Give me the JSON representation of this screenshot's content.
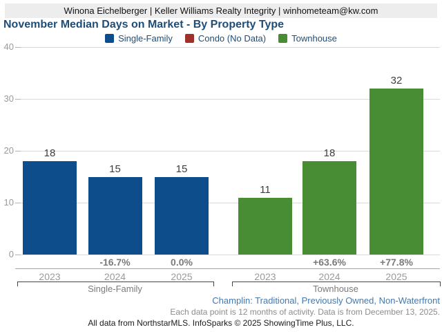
{
  "header": {
    "text": "Winona Eichelberger | Keller Williams Realty Integrity | winhometeam@kw.com"
  },
  "title": "November Median Days on Market - By Property Type",
  "footer": {
    "filter_line": "Champlin: Traditional, Previously Owned, Non-Waterfront",
    "data_note": "Each data point is 12 months of activity. Data is from December 13, 2025.",
    "copyright": "All data from NorthstarMLS. InfoSparks © 2025 ShowingTime Plus, LLC."
  },
  "colors": {
    "single_family": "#0d4d8c",
    "condo": "#a0302a",
    "townhouse": "#488c34",
    "title_text": "#1e4d78",
    "link_text": "#4678ab",
    "grid": "#d9d9d9"
  },
  "chart_data": {
    "type": "bar",
    "title": "November Median Days on Market - By Property Type",
    "xlabel": "",
    "ylabel": "",
    "ylim": [
      0,
      40
    ],
    "yticks": [
      0,
      10,
      20,
      30,
      40
    ],
    "grid": true,
    "legend_position": "top-center",
    "legend": [
      {
        "label": "Single-Family",
        "color": "#0d4d8c"
      },
      {
        "label": "Condo (No Data)",
        "color": "#a0302a"
      },
      {
        "label": "Townhouse",
        "color": "#488c34"
      }
    ],
    "groups": [
      {
        "name": "Single-Family",
        "color": "#0d4d8c",
        "categories": [
          "2023",
          "2024",
          "2025"
        ],
        "values": [
          18,
          15,
          15
        ],
        "pct_change": [
          null,
          "-16.7%",
          "0.0%"
        ]
      },
      {
        "name": "Townhouse",
        "color": "#488c34",
        "categories": [
          "2023",
          "2024",
          "2025"
        ],
        "values": [
          11,
          18,
          32
        ],
        "pct_change": [
          null,
          "+63.6%",
          "+77.8%"
        ]
      }
    ]
  }
}
